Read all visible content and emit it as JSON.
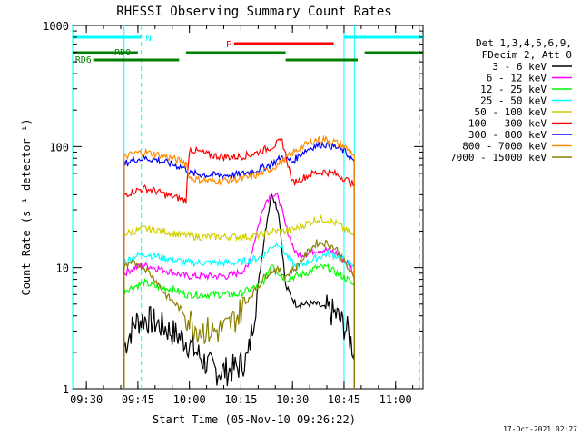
{
  "chart_data": {
    "type": "line",
    "title": "RHESSI Observing Summary Count Rates",
    "xlabel": "Start Time (05-Nov-10 09:26:22)",
    "ylabel": "Count Rate (s⁻¹ detector⁻¹)",
    "yscale": "log",
    "ylim": [
      1,
      1000
    ],
    "xlim": [
      "09:26",
      "11:08"
    ],
    "x_ticks": [
      "09:30",
      "09:45",
      "10:00",
      "10:15",
      "10:30",
      "10:45",
      "11:00"
    ],
    "y_ticks": [
      "1",
      "10",
      "100",
      "1000"
    ],
    "legend_position": "top-right",
    "legend_header": [
      "Det 1,3,4,5,6,9,",
      "FDecim 2, Att 0"
    ],
    "footer_timestamp": "17-Oct-2021 02:27",
    "flag_labels": {
      "night": "N",
      "flare": "F",
      "rd0": "RD0",
      "rd6": "RD6"
    },
    "series": [
      {
        "name": "3 - 6 keV",
        "color": "#000000",
        "x": [
          "09:41",
          "09:44",
          "09:47",
          "09:50",
          "09:53",
          "09:56",
          "09:59",
          "10:02",
          "10:05",
          "10:08",
          "10:11",
          "10:14",
          "10:17",
          "10:20",
          "10:22",
          "10:24",
          "10:26",
          "10:28",
          "10:31",
          "10:34",
          "10:37",
          "10:40",
          "10:43",
          "10:46",
          "10:48"
        ],
        "y": [
          2.2,
          3.5,
          3.8,
          3.5,
          3.2,
          2.8,
          2.5,
          2.0,
          1.6,
          1.4,
          1.4,
          1.5,
          1.8,
          7,
          20,
          42,
          28,
          7,
          5,
          5,
          5,
          4.5,
          4,
          3,
          2
        ]
      },
      {
        "name": "6 - 12 keV",
        "color": "#ff00ff",
        "x": [
          "09:41",
          "09:44",
          "09:47",
          "09:50",
          "09:53",
          "09:56",
          "09:59",
          "10:02",
          "10:05",
          "10:08",
          "10:11",
          "10:14",
          "10:17",
          "10:20",
          "10:22",
          "10:24",
          "10:26",
          "10:28",
          "10:31",
          "10:34",
          "10:37",
          "10:40",
          "10:43",
          "10:46",
          "10:48"
        ],
        "y": [
          9,
          10,
          10.5,
          10,
          9.5,
          9,
          8.5,
          8.5,
          8.5,
          8.5,
          8.5,
          9,
          10,
          22,
          35,
          40,
          38,
          22,
          13,
          13,
          14,
          14,
          13,
          11,
          9
        ]
      },
      {
        "name": "12 - 25 keV",
        "color": "#00ff00",
        "x": [
          "09:41",
          "09:44",
          "09:47",
          "09:50",
          "09:53",
          "09:56",
          "09:59",
          "10:02",
          "10:05",
          "10:08",
          "10:11",
          "10:14",
          "10:17",
          "10:20",
          "10:22",
          "10:24",
          "10:26",
          "10:28",
          "10:31",
          "10:34",
          "10:37",
          "10:40",
          "10:43",
          "10:46",
          "10:48"
        ],
        "y": [
          6.5,
          7,
          7.5,
          7,
          6.8,
          6.5,
          6,
          6,
          6,
          6,
          6,
          6,
          6.5,
          7,
          8,
          11,
          9,
          8,
          8.5,
          9,
          10,
          10,
          9,
          8,
          7
        ]
      },
      {
        "name": "25 - 50 keV",
        "color": "#00ffff",
        "x": [
          "09:41",
          "09:44",
          "09:47",
          "09:50",
          "09:53",
          "09:56",
          "09:59",
          "10:02",
          "10:05",
          "10:08",
          "10:11",
          "10:14",
          "10:17",
          "10:20",
          "10:22",
          "10:24",
          "10:26",
          "10:28",
          "10:31",
          "10:34",
          "10:37",
          "10:40",
          "10:43",
          "10:46",
          "10:48"
        ],
        "y": [
          11,
          12.5,
          13,
          12.5,
          12,
          11.5,
          11,
          11,
          11,
          11,
          11,
          11,
          11.5,
          12,
          13,
          15,
          16,
          13,
          10,
          11,
          12,
          13,
          12.5,
          11,
          10
        ]
      },
      {
        "name": "50 - 100 keV",
        "color": "#d0d000",
        "x": [
          "09:41",
          "09:44",
          "09:47",
          "09:50",
          "09:53",
          "09:56",
          "09:59",
          "10:02",
          "10:05",
          "10:08",
          "10:11",
          "10:14",
          "10:17",
          "10:20",
          "10:22",
          "10:24",
          "10:26",
          "10:28",
          "10:31",
          "10:34",
          "10:37",
          "10:40",
          "10:43",
          "10:46",
          "10:48"
        ],
        "y": [
          19,
          20,
          21,
          20.5,
          20,
          19,
          18.5,
          18,
          18,
          18,
          18,
          18,
          18,
          18.5,
          19,
          20,
          20,
          20,
          21,
          23,
          25,
          25,
          23,
          20,
          18
        ]
      },
      {
        "name": "100 - 300 keV",
        "color": "#ff0000",
        "x": [
          "09:41",
          "09:44",
          "09:47",
          "09:50",
          "09:53",
          "09:56",
          "09:59",
          "10:00",
          "10:03",
          "10:06",
          "10:09",
          "10:12",
          "10:15",
          "10:18",
          "10:21",
          "10:24",
          "10:27",
          "10:30",
          "10:33",
          "10:36",
          "10:39",
          "10:42",
          "10:45",
          "10:48"
        ],
        "y": [
          40,
          43,
          45,
          43,
          40,
          38,
          36,
          95,
          90,
          85,
          83,
          82,
          83,
          86,
          92,
          100,
          112,
          50,
          55,
          60,
          62,
          60,
          55,
          48
        ]
      },
      {
        "name": "300 - 800 keV",
        "color": "#0000ff",
        "x": [
          "09:41",
          "09:44",
          "09:47",
          "09:50",
          "09:53",
          "09:56",
          "09:59",
          "10:00",
          "10:03",
          "10:06",
          "10:09",
          "10:12",
          "10:15",
          "10:18",
          "10:21",
          "10:24",
          "10:27",
          "10:30",
          "10:33",
          "10:36",
          "10:39",
          "10:42",
          "10:45",
          "10:48"
        ],
        "y": [
          72,
          78,
          80,
          78,
          74,
          70,
          66,
          60,
          59,
          58,
          58,
          58,
          59,
          62,
          66,
          72,
          82,
          75,
          90,
          100,
          105,
          100,
          92,
          75
        ]
      },
      {
        "name": "800 - 7000 keV",
        "color": "#ff8c00",
        "x": [
          "09:41",
          "09:44",
          "09:47",
          "09:50",
          "09:53",
          "09:56",
          "09:59",
          "10:00",
          "10:03",
          "10:06",
          "10:09",
          "10:12",
          "10:15",
          "10:18",
          "10:21",
          "10:24",
          "10:27",
          "10:30",
          "10:33",
          "10:36",
          "10:39",
          "10:42",
          "10:45",
          "10:48"
        ],
        "y": [
          82,
          88,
          90,
          87,
          83,
          78,
          74,
          55,
          53,
          52,
          52,
          53,
          54,
          56,
          60,
          66,
          75,
          88,
          100,
          112,
          115,
          110,
          100,
          85
        ]
      },
      {
        "name": "7000 - 15000 keV",
        "color": "#8b8000",
        "x": [
          "09:41",
          "09:44",
          "09:47",
          "09:50",
          "09:53",
          "09:56",
          "09:59",
          "10:02",
          "10:05",
          "10:08",
          "10:11",
          "10:14",
          "10:17",
          "10:20",
          "10:22",
          "10:24",
          "10:26",
          "10:28",
          "10:31",
          "10:34",
          "10:37",
          "10:40",
          "10:43",
          "10:46",
          "10:48"
        ],
        "y": [
          10,
          11,
          10,
          8,
          6,
          5,
          4,
          3.2,
          3,
          3,
          3.2,
          4,
          5.5,
          7,
          8.5,
          9.5,
          9.5,
          8.5,
          10,
          13,
          16,
          16,
          14,
          10,
          8
        ]
      }
    ],
    "flags": {
      "night": {
        "color": "#00ffff",
        "y": 0.82,
        "segments": [
          [
            "09:26",
            "09:46"
          ],
          [
            "10:45",
            "11:08"
          ]
        ]
      },
      "flare": {
        "color": "#ff0000",
        "y": 0.7,
        "segments": [
          [
            "10:13",
            "10:42"
          ]
        ]
      },
      "rd0": {
        "color": "#008000",
        "y": 0.58,
        "segments": [
          [
            "09:26",
            "09:45"
          ],
          [
            "09:59",
            "10:28"
          ],
          [
            "10:51",
            "11:08"
          ]
        ]
      },
      "rd6": {
        "color": "#008000",
        "y": 0.46,
        "segments": [
          [
            "09:32",
            "09:57"
          ],
          [
            "10:28",
            "10:49"
          ]
        ]
      }
    },
    "vertical_lines": [
      {
        "x": "09:26",
        "color": "#00ffff",
        "style": "solid"
      },
      {
        "x": "09:41",
        "color": "#00ffff",
        "style": "solid"
      },
      {
        "x": "09:46",
        "color": "#00ffff",
        "style": "dashed"
      },
      {
        "x": "10:45",
        "color": "#00ffff",
        "style": "solid"
      },
      {
        "x": "10:48",
        "color": "#00ffff",
        "style": "solid"
      },
      {
        "x": "11:07",
        "color": "#00ffff",
        "style": "dashed"
      }
    ]
  }
}
